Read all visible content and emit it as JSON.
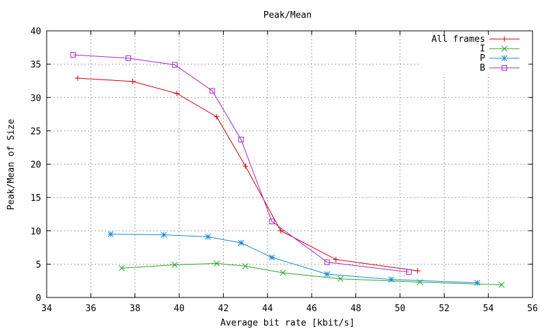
{
  "chart_data": {
    "type": "line",
    "title": "Peak/Mean",
    "xlabel": "Average bit rate [kbit/s]",
    "ylabel": "Peak/Mean of Size",
    "xlim": [
      34,
      56
    ],
    "ylim": [
      0,
      40
    ],
    "xticks": [
      34,
      36,
      38,
      40,
      42,
      44,
      46,
      48,
      50,
      52,
      54,
      56
    ],
    "yticks": [
      0,
      5,
      10,
      15,
      20,
      25,
      30,
      35,
      40
    ],
    "grid": true,
    "legend_position": "top-right",
    "series": [
      {
        "name": "All frames",
        "color": "#cc0000",
        "marker": "plus",
        "x": [
          35.4,
          37.9,
          39.9,
          41.7,
          43.0,
          44.6,
          47.1,
          50.8
        ],
        "y": [
          32.9,
          32.4,
          30.6,
          27.1,
          19.7,
          10.0,
          5.7,
          4.0
        ]
      },
      {
        "name": "I",
        "color": "#22aa22",
        "marker": "cross",
        "x": [
          37.4,
          39.8,
          41.7,
          43.0,
          44.7,
          47.3,
          50.9,
          54.6
        ],
        "y": [
          4.4,
          4.9,
          5.1,
          4.7,
          3.7,
          2.8,
          2.3,
          1.9
        ]
      },
      {
        "name": "P",
        "color": "#1188dd",
        "marker": "star",
        "x": [
          36.9,
          39.3,
          41.3,
          42.8,
          44.2,
          46.7,
          49.6,
          53.5
        ],
        "y": [
          9.5,
          9.4,
          9.1,
          8.2,
          6.0,
          3.5,
          2.7,
          2.2
        ]
      },
      {
        "name": "B",
        "color": "#aa22cc",
        "marker": "square",
        "x": [
          35.2,
          37.7,
          39.8,
          41.5,
          42.8,
          44.2,
          46.7,
          50.4
        ],
        "y": [
          36.4,
          35.9,
          34.9,
          31.0,
          23.7,
          11.4,
          5.3,
          3.8
        ]
      }
    ]
  }
}
